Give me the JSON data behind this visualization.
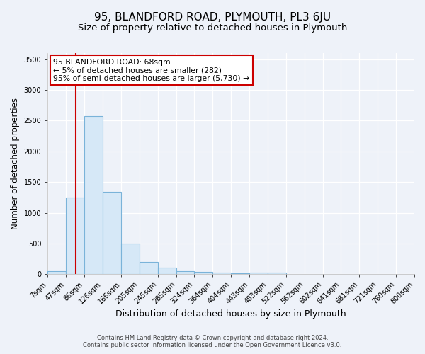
{
  "title": "95, BLANDFORD ROAD, PLYMOUTH, PL3 6JU",
  "subtitle": "Size of property relative to detached houses in Plymouth",
  "xlabel": "Distribution of detached houses by size in Plymouth",
  "ylabel": "Number of detached properties",
  "annotation_line1": "95 BLANDFORD ROAD: 68sqm",
  "annotation_line2": "← 5% of detached houses are smaller (282)",
  "annotation_line3": "95% of semi-detached houses are larger (5,730) →",
  "bin_edges": [
    7,
    47,
    86,
    126,
    166,
    205,
    245,
    285,
    324,
    364,
    404,
    443,
    483,
    522,
    562,
    602,
    641,
    681,
    721,
    760,
    800
  ],
  "bar_heights": [
    50,
    1250,
    2570,
    1340,
    500,
    200,
    110,
    50,
    40,
    25,
    15,
    30,
    25,
    0,
    0,
    0,
    0,
    0,
    0,
    0
  ],
  "bar_color": "#d6e8f7",
  "bar_edge_color": "#7ab3d9",
  "red_line_x": 68,
  "ylim": [
    0,
    3600
  ],
  "yticks": [
    0,
    500,
    1000,
    1500,
    2000,
    2500,
    3000,
    3500
  ],
  "annotation_box_color": "#ffffff",
  "annotation_box_edge": "#cc0000",
  "footer_line1": "Contains HM Land Registry data © Crown copyright and database right 2024.",
  "footer_line2": "Contains public sector information licensed under the Open Government Licence v3.0.",
  "background_color": "#eef2f9",
  "grid_color": "#ffffff",
  "title_fontsize": 11,
  "subtitle_fontsize": 9.5,
  "xlabel_fontsize": 9,
  "ylabel_fontsize": 8.5,
  "tick_fontsize": 7,
  "annotation_fontsize": 7.8,
  "footer_fontsize": 6
}
